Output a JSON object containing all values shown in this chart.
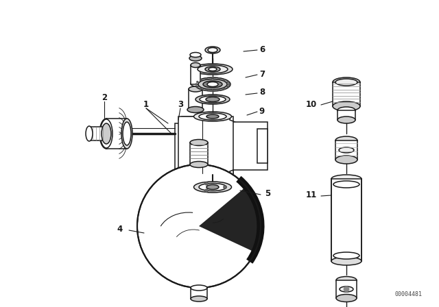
{
  "bg_color": "#ffffff",
  "line_color": "#1a1a1a",
  "fig_width": 6.4,
  "fig_height": 4.48,
  "dpi": 100,
  "part_number": "00004481",
  "title_fontsize": 7,
  "label_fontsize": 8.5
}
